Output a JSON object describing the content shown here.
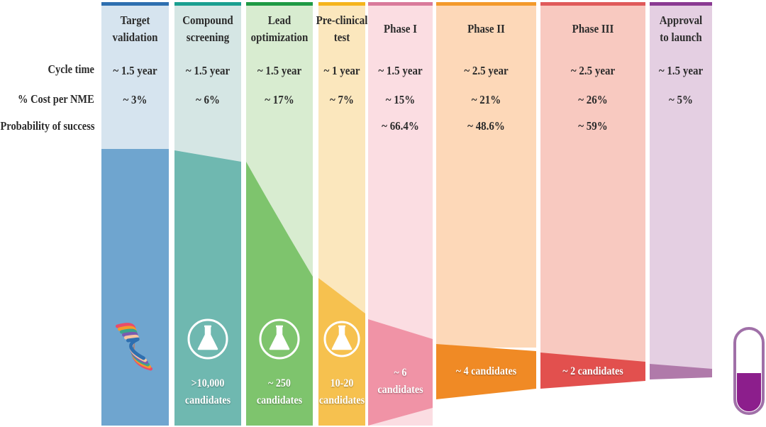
{
  "row_labels": {
    "cycle_time": "Cycle time",
    "cost": "% Cost per NME",
    "probability": "Probability of success"
  },
  "stages": [
    {
      "name_l1": "Target",
      "name_l2": "validation",
      "cycle_time": "~ 1.5 year",
      "cost": "~ 3%",
      "probability": "",
      "candidates_l1": "",
      "candidates_l2": "",
      "icon": "protein-structure-icon",
      "bar_color": "#2e6fb0",
      "light": "#d6e4ef",
      "dark": "#6fa5cf"
    },
    {
      "name_l1": "Compound",
      "name_l2": "screening",
      "cycle_time": "~ 1.5 year",
      "cost": "~ 6%",
      "probability": "",
      "candidates_l1": ">10,000",
      "candidates_l2": "candidates",
      "icon": "flask-icon",
      "bar_color": "#1a9f90",
      "light": "#d5e6e4",
      "dark": "#6fb8b0"
    },
    {
      "name_l1": "Lead",
      "name_l2": "optimization",
      "cycle_time": "~ 1.5 year",
      "cost": "~ 17%",
      "probability": "",
      "candidates_l1": "~ 250",
      "candidates_l2": "candidates",
      "icon": "flask-icon",
      "bar_color": "#1f9a45",
      "light": "#d8ecd0",
      "dark": "#7ec46d"
    },
    {
      "name_l1": "Pre-clinical",
      "name_l2": "test",
      "cycle_time": "~ 1 year",
      "cost": "~ 7%",
      "probability": "",
      "candidates_l1": "10-20",
      "candidates_l2": "candidates",
      "icon": "flask-icon",
      "bar_color": "#f5b41c",
      "light": "#fbe7bd",
      "dark": "#f6c14f"
    },
    {
      "name_l1": "Phase I",
      "name_l2": "",
      "cycle_time": "~ 1.5 year",
      "cost": "~ 15%",
      "probability": "~ 66.4%",
      "candidates_l1": "~ 6",
      "candidates_l2": "candidates",
      "icon": "",
      "bar_color": "#d97a9b",
      "light": "#fbdde2",
      "dark": "#f093a6"
    },
    {
      "name_l1": "Phase II",
      "name_l2": "",
      "cycle_time": "~ 2.5 year",
      "cost": "~ 21%",
      "probability": "~ 48.6%",
      "candidates_l1": "~ 4 candidates",
      "candidates_l2": "",
      "icon": "",
      "bar_color": "#f39a2b",
      "light": "#fdd8b8",
      "dark": "#f08a25"
    },
    {
      "name_l1": "Phase III",
      "name_l2": "",
      "cycle_time": "~ 2.5 year",
      "cost": "~ 26%",
      "probability": "~ 59%",
      "candidates_l1": "~ 2 candidates",
      "candidates_l2": "",
      "icon": "",
      "bar_color": "#e05a5a",
      "light": "#f8c9c0",
      "dark": "#e2504e"
    },
    {
      "name_l1": "Approval",
      "name_l2": "to launch",
      "cycle_time": "~ 1.5 year",
      "cost": "~ 5%",
      "probability": "",
      "candidates_l1": "",
      "candidates_l2": "",
      "icon": "",
      "bar_color": "#8a3a92",
      "light": "#e4cfe2",
      "dark": "#b07aaa"
    }
  ],
  "capsule": {
    "icon": "capsule-icon",
    "outline": "#a070a8",
    "fill": "#8c1e8c"
  }
}
